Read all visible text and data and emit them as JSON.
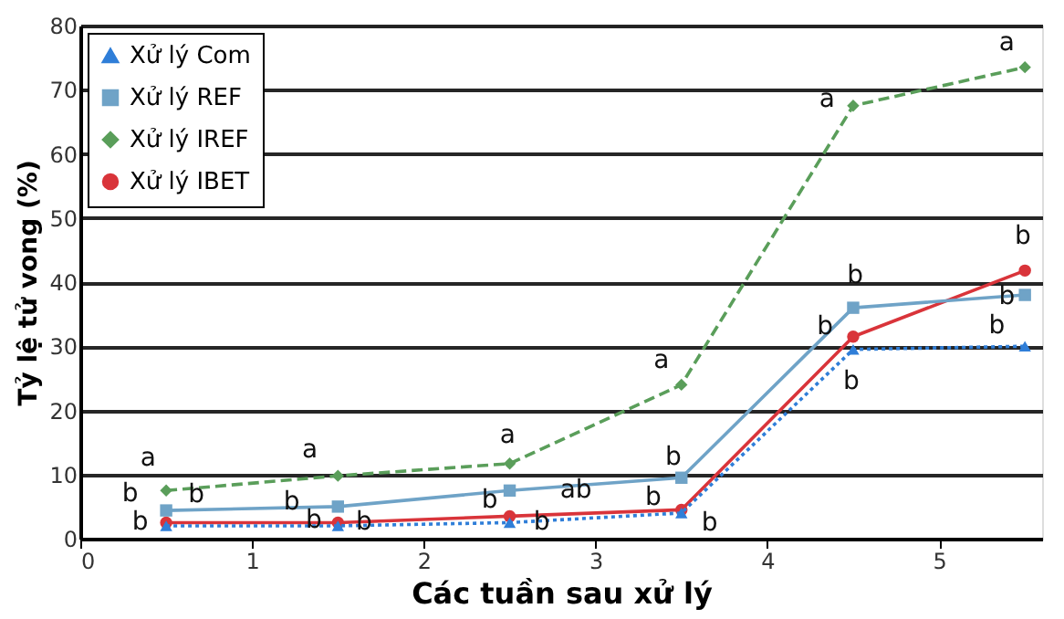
{
  "chart_data": {
    "type": "line",
    "xlabel": "Các tuần sau xử lý",
    "ylabel": "Tỷ lệ tử vong (%)",
    "x": [
      0.5,
      1.5,
      2.5,
      3.5,
      4.5,
      5.5
    ],
    "series": [
      {
        "name": "Xử lý Com",
        "color": "#2f7ed8",
        "marker": "triangle",
        "line_style": "dotted",
        "values": [
          2,
          2,
          2.5,
          4,
          29.5,
          30
        ]
      },
      {
        "name": "Xử lý REF",
        "color": "#6fa3c7",
        "marker": "square",
        "line_style": "solid",
        "values": [
          4.4,
          5,
          7.5,
          9.5,
          36,
          38
        ]
      },
      {
        "name": "Xử lý IREF",
        "color": "#5a9e5a",
        "marker": "diamond",
        "line_style": "dashed",
        "values": [
          7.5,
          9.8,
          11.7,
          24,
          67.5,
          73.5
        ]
      },
      {
        "name": "Xử lý IBET",
        "color": "#d9343a",
        "marker": "circle",
        "line_style": "solid",
        "values": [
          2.5,
          2.5,
          3.5,
          4.5,
          31.5,
          41.8
        ]
      }
    ],
    "xlim": [
      0,
      5.6
    ],
    "xticks": [
      {
        "value": 0,
        "label": "0"
      },
      {
        "value": 1,
        "label": "1"
      },
      {
        "value": 2,
        "label": "2"
      },
      {
        "value": 3,
        "label": "3"
      },
      {
        "value": 4,
        "label": "4"
      },
      {
        "value": 5,
        "label": "5"
      }
    ],
    "ylim": [
      0,
      80
    ],
    "yticks": [
      0,
      10,
      20,
      30,
      40,
      50,
      60,
      70,
      80
    ],
    "grid": "y",
    "legend": "top left",
    "annotations": [
      {
        "text": "a",
        "x": 0.5,
        "y": 7.5
      },
      {
        "text": "b",
        "x": 0.5,
        "y": 4.4
      },
      {
        "text": "b",
        "x": 0.5,
        "y": 7.5
      },
      {
        "text": "b",
        "x": 0.5,
        "y": 2.5
      },
      {
        "text": "a",
        "x": 1.5,
        "y": 9.8
      },
      {
        "text": "b",
        "x": 1.5,
        "y": 5
      },
      {
        "text": "b",
        "x": 1.5,
        "y": 2.5
      },
      {
        "text": "b",
        "x": 1.5,
        "y": 2
      },
      {
        "text": "a",
        "x": 2.5,
        "y": 11.7
      },
      {
        "text": "b",
        "x": 2.5,
        "y": 7.5
      },
      {
        "text": "ab",
        "x": 2.5,
        "y": 7.5
      },
      {
        "text": "b",
        "x": 2.5,
        "y": 3.5
      },
      {
        "text": "a",
        "x": 3.5,
        "y": 24
      },
      {
        "text": "b",
        "x": 3.5,
        "y": 9.5
      },
      {
        "text": "b",
        "x": 3.5,
        "y": 4.5
      },
      {
        "text": "b",
        "x": 3.5,
        "y": 4
      },
      {
        "text": "a",
        "x": 4.5,
        "y": 67.5
      },
      {
        "text": "b",
        "x": 4.5,
        "y": 36
      },
      {
        "text": "b",
        "x": 4.5,
        "y": 31.5
      },
      {
        "text": "b",
        "x": 4.5,
        "y": 29.5
      },
      {
        "text": "a",
        "x": 5.5,
        "y": 73.5
      },
      {
        "text": "b",
        "x": 5.5,
        "y": 41.8
      },
      {
        "text": "b",
        "x": 5.5,
        "y": 38
      },
      {
        "text": "b",
        "x": 5.5,
        "y": 30
      }
    ]
  }
}
